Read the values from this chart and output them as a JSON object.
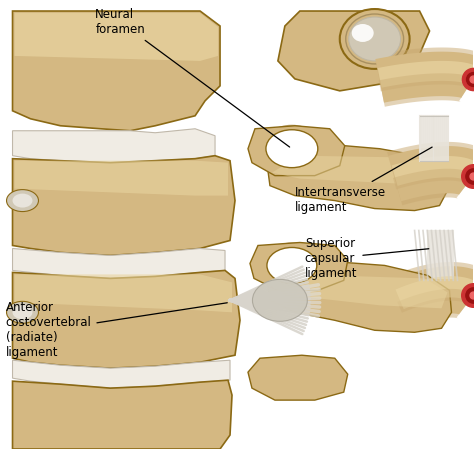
{
  "background_color": "#ffffff",
  "bone_color": "#d4b882",
  "bone_mid": "#c8a870",
  "bone_dark": "#8b6914",
  "bone_light": "#e8d4a0",
  "bone_lighter": "#f0e0b0",
  "disc_white": "#f0ece4",
  "disc_edge": "#c8c0b0",
  "rib_end_red": "#cc3333",
  "rib_end_dark": "#991111",
  "ligament_white": "#d8d4cc",
  "ligament_line": "#b0a898",
  "labels": {
    "neural_foramen": "Neural\nforamen",
    "intertransverse": "Intertransverse\nligament",
    "superior_capsular": "Superior\ncapsular\nligament",
    "anterior_costovertebral": "Anterior\ncostovertebral\n(radiate)\nligament"
  },
  "figsize": [
    4.74,
    4.49
  ],
  "dpi": 100
}
